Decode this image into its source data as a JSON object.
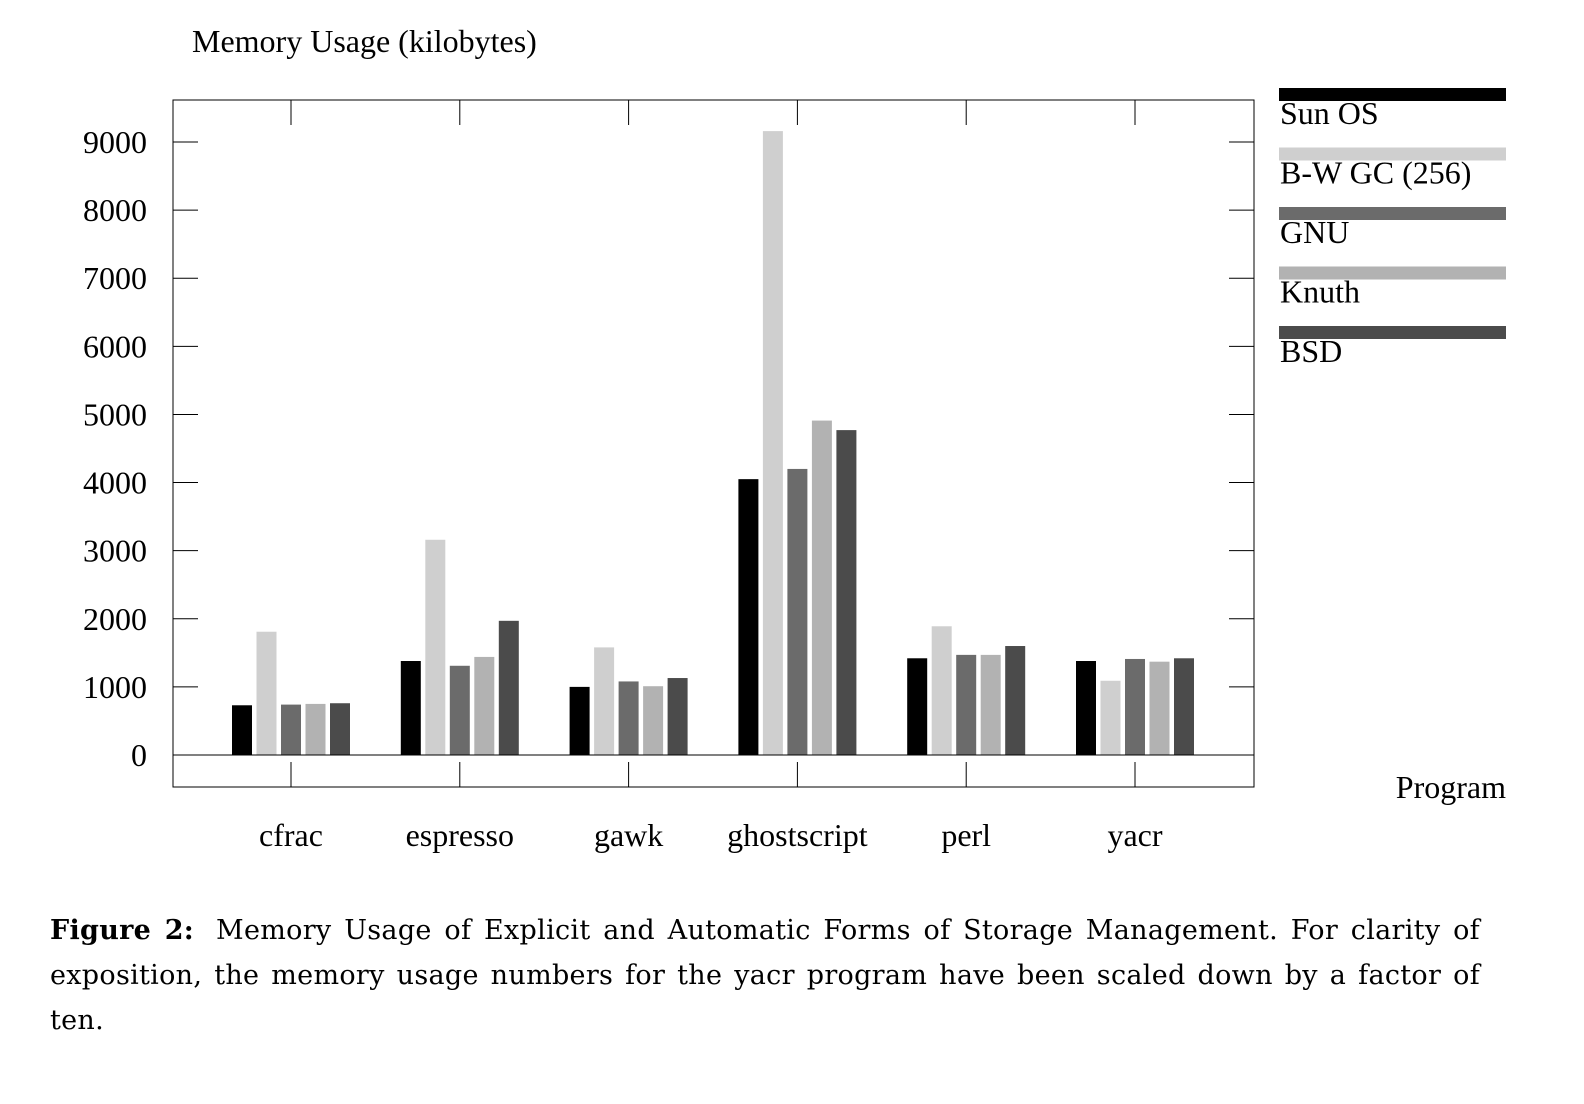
{
  "caption": {
    "label": "Figure 2:",
    "text": "Memory Usage of Explicit and Automatic Forms of Storage Management. For clarity of exposition, the memory usage numbers for the yacr program have been scaled down by a factor of ten."
  },
  "chart_data": {
    "type": "bar",
    "title": "",
    "ylabel": "Memory Usage (kilobytes)",
    "xlabel": "Program",
    "ylim": [
      0,
      9000
    ],
    "yticks": [
      0,
      1000,
      2000,
      3000,
      4000,
      5000,
      6000,
      7000,
      8000,
      9000
    ],
    "grid": false,
    "legend_position": "right",
    "categories": [
      "cfrac",
      "espresso",
      "gawk",
      "ghostscript",
      "perl",
      "yacr"
    ],
    "series": [
      {
        "name": "Sun OS",
        "color": "#000000",
        "values": [
          730,
          1380,
          1000,
          4050,
          1420,
          1380
        ]
      },
      {
        "name": "B-W GC (256)",
        "color": "#cfcfcf",
        "values": [
          1810,
          3160,
          1580,
          9160,
          1890,
          1090
        ]
      },
      {
        "name": "GNU",
        "color": "#6b6b6b",
        "values": [
          740,
          1310,
          1080,
          4200,
          1470,
          1410
        ]
      },
      {
        "name": "Knuth",
        "color": "#b2b2b2",
        "values": [
          750,
          1440,
          1010,
          4910,
          1470,
          1370
        ]
      },
      {
        "name": "BSD",
        "color": "#4b4b4b",
        "values": [
          760,
          1970,
          1130,
          4770,
          1600,
          1420
        ]
      }
    ]
  }
}
